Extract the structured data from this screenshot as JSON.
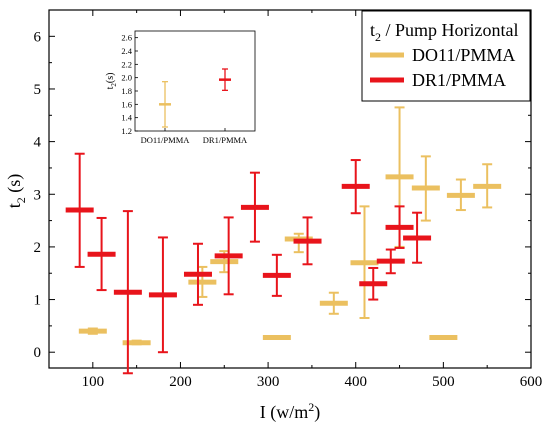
{
  "chart_data": {
    "type": "scatter",
    "style": "horizontal error bars (center dash) with vertical error bars",
    "xlabel_main": "I (w/m",
    "xlabel_sup": "2",
    "xlabel_end": ")",
    "ylabel_main": "t",
    "ylabel_sub": "2",
    "ylabel_end": " (s)",
    "xlim": [
      50,
      600
    ],
    "ylim": [
      -0.3,
      6.5
    ],
    "x_ticks": [
      100,
      200,
      300,
      400,
      500,
      600
    ],
    "y_ticks": [
      0,
      1,
      2,
      3,
      4,
      5,
      6
    ],
    "grid": false,
    "legend": {
      "placement": "top-right",
      "title_main": "t",
      "title_sub": "2",
      "title_end": " / Pump Horizontal"
    },
    "series": [
      {
        "name": "DO11/PMMA",
        "color": "#ebc060",
        "points": [
          {
            "x": 100,
            "y": 0.4,
            "low": 0.35,
            "high": 0.45
          },
          {
            "x": 150,
            "y": 0.18,
            "low": 0.15,
            "high": 0.22
          },
          {
            "x": 225,
            "y": 1.33,
            "low": 1.05,
            "high": 1.62
          },
          {
            "x": 250,
            "y": 1.72,
            "low": 1.52,
            "high": 1.92
          },
          {
            "x": 310,
            "y": 0.28,
            "low": 0.27,
            "high": 0.29
          },
          {
            "x": 335,
            "y": 2.15,
            "low": 1.9,
            "high": 2.25
          },
          {
            "x": 375,
            "y": 0.93,
            "low": 0.73,
            "high": 1.13
          },
          {
            "x": 410,
            "y": 1.7,
            "low": 0.65,
            "high": 2.77
          },
          {
            "x": 450,
            "y": 3.33,
            "low": 2.0,
            "high": 4.65
          },
          {
            "x": 480,
            "y": 3.12,
            "low": 2.5,
            "high": 3.72
          },
          {
            "x": 500,
            "y": 0.28,
            "low": 0.27,
            "high": 0.29
          },
          {
            "x": 520,
            "y": 2.98,
            "low": 2.7,
            "high": 3.28
          },
          {
            "x": 550,
            "y": 3.15,
            "low": 2.75,
            "high": 3.57
          }
        ]
      },
      {
        "name": "DR1/PMMA",
        "color": "#e8141b",
        "points": [
          {
            "x": 85,
            "y": 2.7,
            "low": 1.62,
            "high": 3.77
          },
          {
            "x": 110,
            "y": 1.86,
            "low": 1.18,
            "high": 2.55
          },
          {
            "x": 140,
            "y": 1.14,
            "low": -0.4,
            "high": 2.68
          },
          {
            "x": 180,
            "y": 1.09,
            "low": 0.0,
            "high": 2.18
          },
          {
            "x": 220,
            "y": 1.48,
            "low": 0.9,
            "high": 2.06
          },
          {
            "x": 255,
            "y": 1.83,
            "low": 1.1,
            "high": 2.56
          },
          {
            "x": 285,
            "y": 2.75,
            "low": 2.1,
            "high": 3.41
          },
          {
            "x": 310,
            "y": 1.46,
            "low": 1.07,
            "high": 1.85
          },
          {
            "x": 345,
            "y": 2.11,
            "low": 1.67,
            "high": 2.56
          },
          {
            "x": 400,
            "y": 3.15,
            "low": 2.64,
            "high": 3.65
          },
          {
            "x": 420,
            "y": 1.3,
            "low": 1.0,
            "high": 1.6
          },
          {
            "x": 440,
            "y": 1.73,
            "low": 1.5,
            "high": 1.95
          },
          {
            "x": 450,
            "y": 2.37,
            "low": 1.98,
            "high": 2.77
          },
          {
            "x": 470,
            "y": 2.17,
            "low": 1.7,
            "high": 2.65
          }
        ]
      }
    ],
    "inset": {
      "type": "scatter",
      "ylabel_main": "t",
      "ylabel_sub": "2",
      "ylabel_end": "(s)",
      "ylim": [
        1.2,
        2.7
      ],
      "y_ticks": [
        1.2,
        1.4,
        1.6,
        1.8,
        2.0,
        2.2,
        2.4,
        2.6
      ],
      "y_tick_labels": [
        "1.2",
        "1.4",
        "1.6",
        "1.8",
        "2.0",
        "2.2",
        "2.4",
        "2.6"
      ],
      "categories": [
        "DO11/PMMA",
        "DR1/PMMA"
      ],
      "points": [
        {
          "category": "DO11/PMMA",
          "y": 1.6,
          "low": 1.26,
          "high": 1.94,
          "color": "#ebc060"
        },
        {
          "category": "DR1/PMMA",
          "y": 1.97,
          "low": 1.81,
          "high": 2.13,
          "color": "#e8141b"
        }
      ]
    }
  }
}
